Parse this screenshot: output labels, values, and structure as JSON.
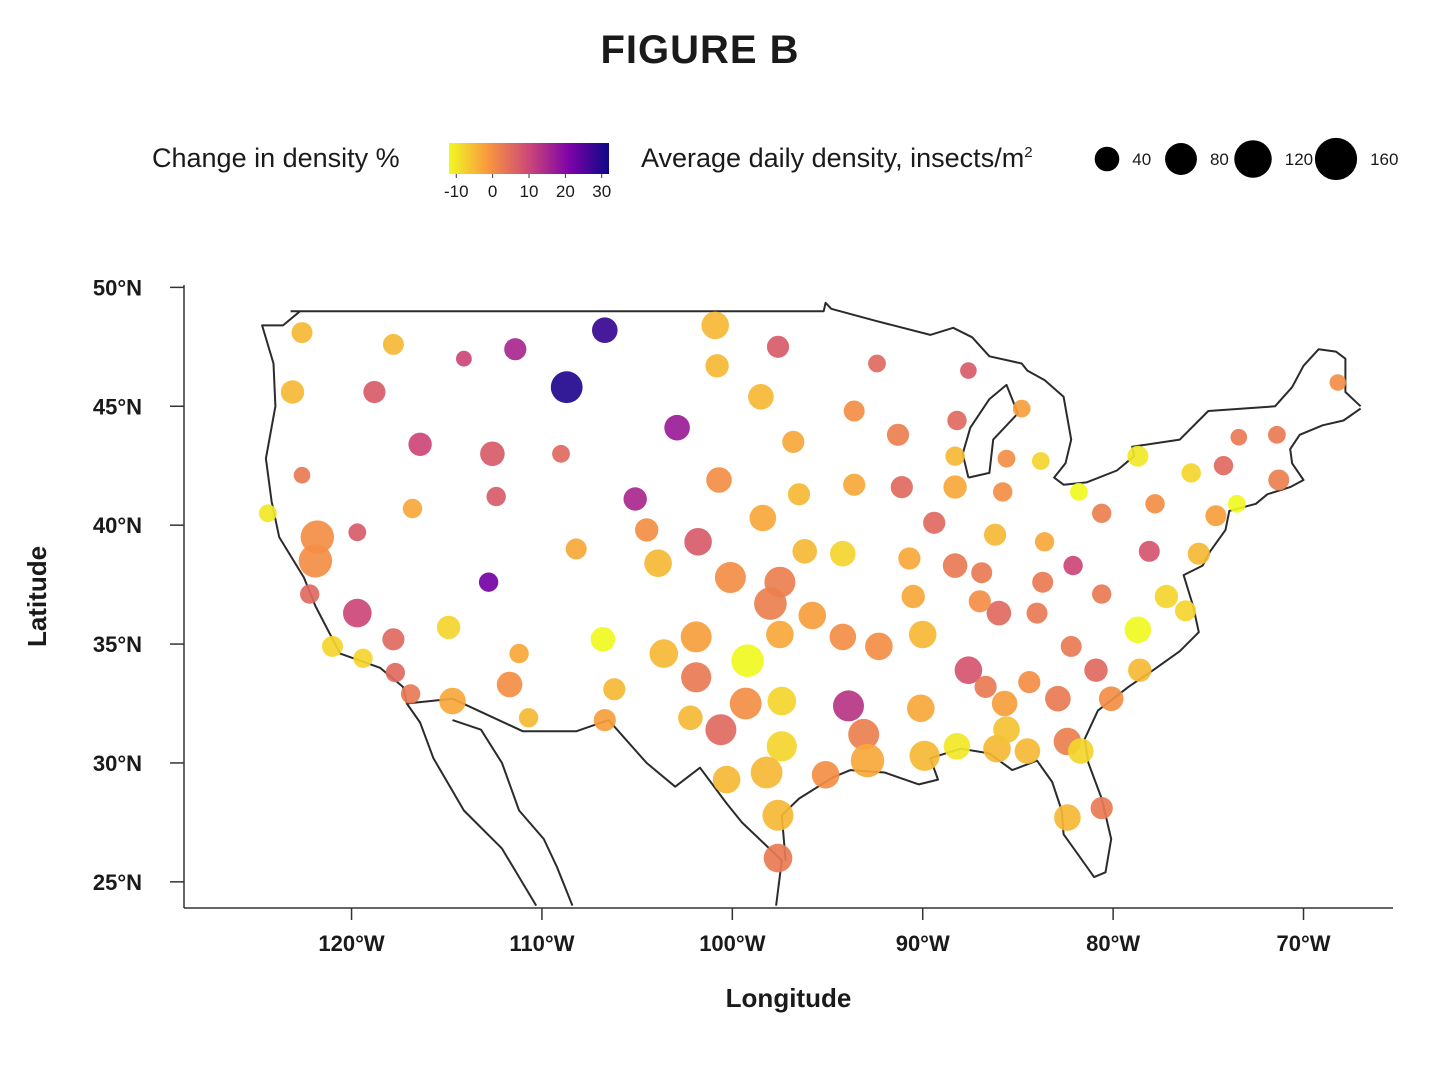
{
  "chart_data": {
    "type": "scatter",
    "title": "FIGURE B",
    "xlabel": "Longitude",
    "ylabel": "Latitude",
    "xlim": [
      -128.8,
      -65.3
    ],
    "ylim": [
      23.9,
      50.1
    ],
    "x_ticks": [
      {
        "value": -120,
        "label": "120°W"
      },
      {
        "value": -110,
        "label": "110°W"
      },
      {
        "value": -100,
        "label": "100°W"
      },
      {
        "value": -90,
        "label": "90°W"
      },
      {
        "value": -80,
        "label": "80°W"
      },
      {
        "value": -70,
        "label": "70°W"
      }
    ],
    "y_ticks": [
      {
        "value": 50,
        "label": "50°N"
      },
      {
        "value": 45,
        "label": "45°N"
      },
      {
        "value": 40,
        "label": "40°N"
      },
      {
        "value": 35,
        "label": "35°N"
      },
      {
        "value": 30,
        "label": "30°N"
      },
      {
        "value": 25,
        "label": "25°N"
      }
    ],
    "color_legend": {
      "title": "Change in density %",
      "ticks": [
        "-10",
        "0",
        "10",
        "20",
        "30"
      ],
      "range": [
        -12,
        32
      ],
      "colors": [
        "#f0f921",
        "#f89540",
        "#cc4778",
        "#7e03a8",
        "#0d0887"
      ]
    },
    "size_legend": {
      "title": "Average daily density, insects/m",
      "title_superscript": "2",
      "values": [
        40,
        80,
        120,
        160
      ],
      "labels": [
        "40",
        "80",
        "120",
        "160"
      ]
    },
    "grid": false,
    "basemap": "United States outline",
    "points": [
      {
        "lon": -122.6,
        "lat": 48.1,
        "density": 25,
        "change": -5
      },
      {
        "lon": -117.8,
        "lat": 47.6,
        "density": 25,
        "change": -5
      },
      {
        "lon": -114.1,
        "lat": 47.0,
        "density": 10,
        "change": 10
      },
      {
        "lon": -111.4,
        "lat": 47.4,
        "density": 30,
        "change": 15
      },
      {
        "lon": -106.7,
        "lat": 48.2,
        "density": 45,
        "change": 28
      },
      {
        "lon": -108.7,
        "lat": 45.8,
        "density": 80,
        "change": 30
      },
      {
        "lon": -123.1,
        "lat": 45.6,
        "density": 35,
        "change": -5
      },
      {
        "lon": -118.8,
        "lat": 45.6,
        "density": 30,
        "change": 7
      },
      {
        "lon": -100.9,
        "lat": 48.4,
        "density": 55,
        "change": -5
      },
      {
        "lon": -100.8,
        "lat": 46.7,
        "density": 35,
        "change": -5
      },
      {
        "lon": -97.6,
        "lat": 47.5,
        "density": 30,
        "change": 7
      },
      {
        "lon": -92.4,
        "lat": 46.8,
        "density": 15,
        "change": 5
      },
      {
        "lon": -87.6,
        "lat": 46.5,
        "density": 12,
        "change": 7
      },
      {
        "lon": -98.5,
        "lat": 45.4,
        "density": 45,
        "change": -5
      },
      {
        "lon": -93.6,
        "lat": 44.8,
        "density": 25,
        "change": 0
      },
      {
        "lon": -88.2,
        "lat": 44.4,
        "density": 20,
        "change": 5
      },
      {
        "lon": -84.8,
        "lat": 44.9,
        "density": 15,
        "change": -2
      },
      {
        "lon": -116.4,
        "lat": 43.4,
        "density": 35,
        "change": 10
      },
      {
        "lon": -112.6,
        "lat": 43.0,
        "density": 40,
        "change": 7
      },
      {
        "lon": -109.0,
        "lat": 43.0,
        "density": 15,
        "change": 5
      },
      {
        "lon": -102.9,
        "lat": 44.1,
        "density": 45,
        "change": 17
      },
      {
        "lon": -96.8,
        "lat": 43.5,
        "density": 30,
        "change": -3
      },
      {
        "lon": -91.3,
        "lat": 43.8,
        "density": 30,
        "change": 2
      },
      {
        "lon": -88.3,
        "lat": 42.9,
        "density": 20,
        "change": -5
      },
      {
        "lon": -85.6,
        "lat": 42.8,
        "density": 15,
        "change": 0
      },
      {
        "lon": -83.8,
        "lat": 42.7,
        "density": 15,
        "change": -8
      },
      {
        "lon": -78.7,
        "lat": 42.9,
        "density": 25,
        "change": -10
      },
      {
        "lon": -75.9,
        "lat": 42.2,
        "density": 20,
        "change": -8
      },
      {
        "lon": -74.2,
        "lat": 42.5,
        "density": 20,
        "change": 5
      },
      {
        "lon": -73.4,
        "lat": 43.7,
        "density": 12,
        "change": 3
      },
      {
        "lon": -71.4,
        "lat": 43.8,
        "density": 15,
        "change": 3
      },
      {
        "lon": -68.2,
        "lat": 46.0,
        "density": 12,
        "change": 0
      },
      {
        "lon": -122.6,
        "lat": 42.1,
        "density": 12,
        "change": 3
      },
      {
        "lon": -116.8,
        "lat": 40.7,
        "density": 20,
        "change": -3
      },
      {
        "lon": -112.4,
        "lat": 41.2,
        "density": 20,
        "change": 7
      },
      {
        "lon": -105.1,
        "lat": 41.1,
        "density": 35,
        "change": 15
      },
      {
        "lon": -100.7,
        "lat": 41.9,
        "density": 45,
        "change": 0
      },
      {
        "lon": -96.5,
        "lat": 41.3,
        "density": 30,
        "change": -5
      },
      {
        "lon": -93.6,
        "lat": 41.7,
        "density": 30,
        "change": -3
      },
      {
        "lon": -91.1,
        "lat": 41.6,
        "density": 30,
        "change": 5
      },
      {
        "lon": -88.3,
        "lat": 41.6,
        "density": 35,
        "change": -3
      },
      {
        "lon": -85.8,
        "lat": 41.4,
        "density": 20,
        "change": 0
      },
      {
        "lon": -81.8,
        "lat": 41.4,
        "density": 15,
        "change": -12
      },
      {
        "lon": -80.6,
        "lat": 40.5,
        "density": 20,
        "change": 2
      },
      {
        "lon": -77.8,
        "lat": 40.9,
        "density": 20,
        "change": 0
      },
      {
        "lon": -74.6,
        "lat": 40.4,
        "density": 25,
        "change": -2
      },
      {
        "lon": -73.5,
        "lat": 40.9,
        "density": 15,
        "change": -12
      },
      {
        "lon": -71.3,
        "lat": 41.9,
        "density": 25,
        "change": 2
      },
      {
        "lon": -124.4,
        "lat": 40.5,
        "density": 15,
        "change": -10
      },
      {
        "lon": -121.8,
        "lat": 39.5,
        "density": 90,
        "change": 0
      },
      {
        "lon": -121.9,
        "lat": 38.5,
        "density": 90,
        "change": 0
      },
      {
        "lon": -119.7,
        "lat": 39.7,
        "density": 15,
        "change": 7
      },
      {
        "lon": -108.2,
        "lat": 39.0,
        "density": 25,
        "change": -3
      },
      {
        "lon": -104.5,
        "lat": 39.8,
        "density": 35,
        "change": 0
      },
      {
        "lon": -101.8,
        "lat": 39.3,
        "density": 55,
        "change": 7
      },
      {
        "lon": -98.4,
        "lat": 40.3,
        "density": 50,
        "change": -3
      },
      {
        "lon": -96.2,
        "lat": 38.9,
        "density": 40,
        "change": -5
      },
      {
        "lon": -94.2,
        "lat": 38.8,
        "density": 45,
        "change": -8
      },
      {
        "lon": -90.7,
        "lat": 38.6,
        "density": 30,
        "change": -3
      },
      {
        "lon": -89.4,
        "lat": 40.1,
        "density": 30,
        "change": 5
      },
      {
        "lon": -86.2,
        "lat": 39.6,
        "density": 30,
        "change": -5
      },
      {
        "lon": -83.6,
        "lat": 39.3,
        "density": 20,
        "change": -3
      },
      {
        "lon": -78.1,
        "lat": 38.9,
        "density": 25,
        "change": 8
      },
      {
        "lon": -75.5,
        "lat": 38.8,
        "density": 30,
        "change": -5
      },
      {
        "lon": -122.2,
        "lat": 37.1,
        "density": 20,
        "change": 5
      },
      {
        "lon": -119.7,
        "lat": 36.3,
        "density": 60,
        "change": 10
      },
      {
        "lon": -112.8,
        "lat": 37.6,
        "density": 20,
        "change": 22
      },
      {
        "lon": -114.9,
        "lat": 35.7,
        "density": 35,
        "change": -8
      },
      {
        "lon": -106.8,
        "lat": 35.2,
        "density": 40,
        "change": -12
      },
      {
        "lon": -103.9,
        "lat": 38.4,
        "density": 55,
        "change": -5
      },
      {
        "lon": -100.1,
        "lat": 37.8,
        "density": 75,
        "change": 0
      },
      {
        "lon": -97.5,
        "lat": 37.6,
        "density": 75,
        "change": 2
      },
      {
        "lon": -98.0,
        "lat": 36.7,
        "density": 85,
        "change": 2
      },
      {
        "lon": -95.8,
        "lat": 36.2,
        "density": 55,
        "change": -2
      },
      {
        "lon": -90.5,
        "lat": 37.0,
        "density": 35,
        "change": -3
      },
      {
        "lon": -88.3,
        "lat": 38.3,
        "density": 40,
        "change": 3
      },
      {
        "lon": -86.9,
        "lat": 38.0,
        "density": 25,
        "change": 3
      },
      {
        "lon": -83.7,
        "lat": 37.6,
        "density": 25,
        "change": 3
      },
      {
        "lon": -82.1,
        "lat": 38.3,
        "density": 20,
        "change": 10
      },
      {
        "lon": -80.6,
        "lat": 37.1,
        "density": 20,
        "change": 3
      },
      {
        "lon": -86.0,
        "lat": 36.3,
        "density": 40,
        "change": 5
      },
      {
        "lon": -87.0,
        "lat": 36.8,
        "density": 30,
        "change": 0
      },
      {
        "lon": -84.0,
        "lat": 36.3,
        "density": 25,
        "change": 3
      },
      {
        "lon": -78.7,
        "lat": 35.6,
        "density": 50,
        "change": -12
      },
      {
        "lon": -77.2,
        "lat": 37.0,
        "density": 35,
        "change": -8
      },
      {
        "lon": -76.2,
        "lat": 36.4,
        "density": 25,
        "change": -8
      },
      {
        "lon": -117.8,
        "lat": 35.2,
        "density": 30,
        "change": 5
      },
      {
        "lon": -121.0,
        "lat": 34.9,
        "density": 25,
        "change": -8
      },
      {
        "lon": -119.4,
        "lat": 34.4,
        "density": 20,
        "change": -8
      },
      {
        "lon": -117.7,
        "lat": 33.8,
        "density": 20,
        "change": 5
      },
      {
        "lon": -116.9,
        "lat": 32.9,
        "density": 20,
        "change": 3
      },
      {
        "lon": -111.2,
        "lat": 34.6,
        "density": 20,
        "change": -3
      },
      {
        "lon": -111.7,
        "lat": 33.3,
        "density": 45,
        "change": 0
      },
      {
        "lon": -114.7,
        "lat": 32.6,
        "density": 50,
        "change": -3
      },
      {
        "lon": -110.7,
        "lat": 31.9,
        "density": 20,
        "change": -5
      },
      {
        "lon": -106.7,
        "lat": 31.8,
        "density": 30,
        "change": -2
      },
      {
        "lon": -106.2,
        "lat": 33.1,
        "density": 30,
        "change": -5
      },
      {
        "lon": -103.6,
        "lat": 34.6,
        "density": 60,
        "change": -5
      },
      {
        "lon": -101.9,
        "lat": 35.3,
        "density": 75,
        "change": -2
      },
      {
        "lon": -101.9,
        "lat": 33.6,
        "density": 70,
        "change": 3
      },
      {
        "lon": -99.2,
        "lat": 34.3,
        "density": 85,
        "change": -12
      },
      {
        "lon": -97.5,
        "lat": 35.4,
        "density": 55,
        "change": -3
      },
      {
        "lon": -94.2,
        "lat": 35.3,
        "density": 50,
        "change": 0
      },
      {
        "lon": -92.3,
        "lat": 34.9,
        "density": 55,
        "change": 0
      },
      {
        "lon": -90.0,
        "lat": 35.4,
        "density": 55,
        "change": -5
      },
      {
        "lon": -87.6,
        "lat": 33.9,
        "density": 55,
        "change": 8
      },
      {
        "lon": -86.7,
        "lat": 33.2,
        "density": 30,
        "change": 3
      },
      {
        "lon": -84.4,
        "lat": 33.4,
        "density": 30,
        "change": 0
      },
      {
        "lon": -82.2,
        "lat": 34.9,
        "density": 25,
        "change": 3
      },
      {
        "lon": -80.9,
        "lat": 33.9,
        "density": 35,
        "change": 5
      },
      {
        "lon": -78.6,
        "lat": 33.9,
        "density": 35,
        "change": -5
      },
      {
        "lon": -80.1,
        "lat": 32.7,
        "density": 40,
        "change": 0
      },
      {
        "lon": -82.9,
        "lat": 32.7,
        "density": 45,
        "change": 3
      },
      {
        "lon": -85.7,
        "lat": 32.5,
        "density": 45,
        "change": -2
      },
      {
        "lon": -90.1,
        "lat": 32.3,
        "density": 55,
        "change": -3
      },
      {
        "lon": -93.9,
        "lat": 32.4,
        "density": 75,
        "change": 13
      },
      {
        "lon": -97.4,
        "lat": 32.6,
        "density": 60,
        "change": -8
      },
      {
        "lon": -99.3,
        "lat": 32.5,
        "density": 80,
        "change": 0
      },
      {
        "lon": -102.2,
        "lat": 31.9,
        "density": 40,
        "change": -5
      },
      {
        "lon": -100.6,
        "lat": 31.4,
        "density": 75,
        "change": 5
      },
      {
        "lon": -97.4,
        "lat": 30.7,
        "density": 70,
        "change": -8
      },
      {
        "lon": -93.1,
        "lat": 31.2,
        "density": 75,
        "change": 2
      },
      {
        "lon": -92.9,
        "lat": 30.1,
        "density": 90,
        "change": -3
      },
      {
        "lon": -95.1,
        "lat": 29.5,
        "density": 55,
        "change": 0
      },
      {
        "lon": -98.2,
        "lat": 29.6,
        "density": 80,
        "change": -5
      },
      {
        "lon": -100.3,
        "lat": 29.3,
        "density": 55,
        "change": -5
      },
      {
        "lon": -89.9,
        "lat": 30.3,
        "density": 70,
        "change": -5
      },
      {
        "lon": -88.2,
        "lat": 30.7,
        "density": 50,
        "change": -10
      },
      {
        "lon": -86.1,
        "lat": 30.6,
        "density": 55,
        "change": -5
      },
      {
        "lon": -84.5,
        "lat": 30.5,
        "density": 45,
        "change": -5
      },
      {
        "lon": -82.4,
        "lat": 30.9,
        "density": 55,
        "change": 2
      },
      {
        "lon": -81.7,
        "lat": 30.5,
        "density": 45,
        "change": -8
      },
      {
        "lon": -85.6,
        "lat": 31.4,
        "density": 50,
        "change": -6
      },
      {
        "lon": -97.6,
        "lat": 27.8,
        "density": 75,
        "change": -5
      },
      {
        "lon": -97.6,
        "lat": 26.0,
        "density": 60,
        "change": 3
      },
      {
        "lon": -82.4,
        "lat": 27.7,
        "density": 50,
        "change": -5
      },
      {
        "lon": -80.6,
        "lat": 28.1,
        "density": 30,
        "change": 3
      }
    ]
  }
}
